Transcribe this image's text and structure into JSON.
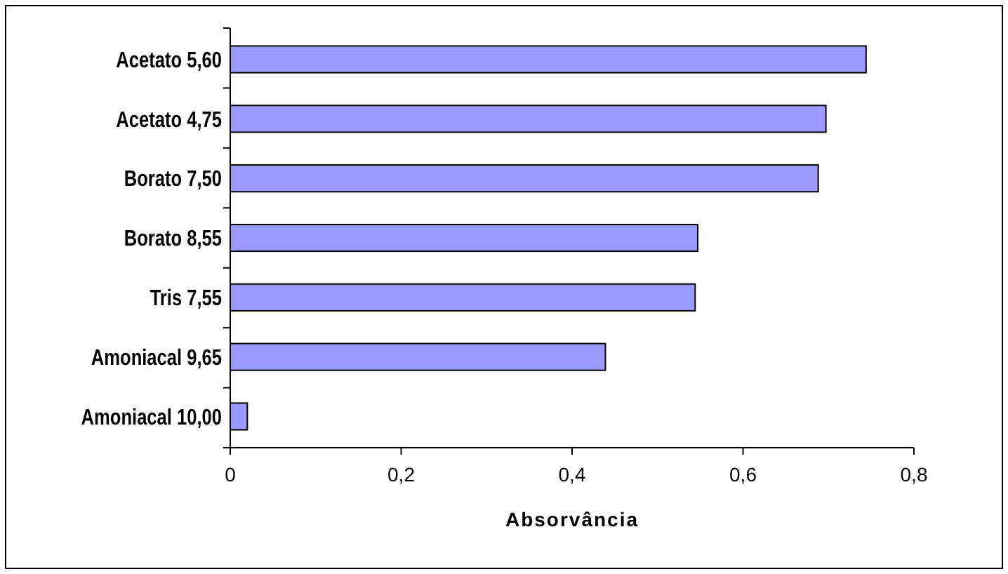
{
  "chart_data": {
    "type": "bar",
    "orientation": "horizontal",
    "xlabel": "Absorvância",
    "categories": [
      "Acetato 5,60",
      "Acetato 4,75",
      "Borato 7,50",
      "Borato 8,55",
      "Tris 7,55",
      "Amoniacal 9,65",
      "Amoniacal 10,00"
    ],
    "values": [
      0.744,
      0.697,
      0.688,
      0.547,
      0.544,
      0.439,
      0.02
    ],
    "color": "#9999ff",
    "xlim": [
      0,
      0.8
    ],
    "xticks": [
      0,
      {
        "value": 0.2,
        "label": "0,2"
      },
      {
        "value": 0.4,
        "label": "0,4"
      },
      {
        "value": 0.6,
        "label": "0,6"
      },
      {
        "value": 0.8,
        "label": "0,8"
      }
    ],
    "grid": false
  }
}
